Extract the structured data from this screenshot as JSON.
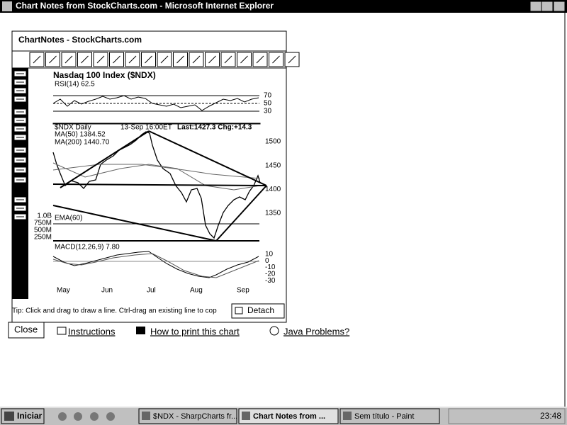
{
  "window": {
    "title": "Chart Notes from StockCharts.com - Microsoft Internet Explorer"
  },
  "applet": {
    "header": "ChartNotes - StockCharts.com",
    "tip": "Tip: Click and drag to draw a line. Ctrl-drag an existing line to cop",
    "detach": "Detach"
  },
  "chart": {
    "title": "Nasdaq 100 Index ($NDX)",
    "rsi_label": "RSI(14) 62.5",
    "rsi_ticks": [
      "70",
      "50",
      "30"
    ],
    "symbol": "$NDX Daily",
    "date": "13-Sep 16:00ET",
    "last": "Last:1427.3 Chg:+14.3",
    "ma50": "MA(50) 1384.52",
    "ma200": "MA(200) 1440.70",
    "price_ticks": [
      "1500",
      "1450",
      "1400",
      "1350"
    ],
    "volume_ticks": [
      "1.0B",
      "750M",
      "500M",
      "250M"
    ],
    "ema": "EMA(60)",
    "macd_label": "MACD(12,26,9) 7.80",
    "macd_ticks": [
      "10",
      "0",
      "-10",
      "-20",
      "-30"
    ],
    "months": [
      "May",
      "Jun",
      "Jul",
      "Aug",
      "Sep"
    ]
  },
  "links": {
    "close": "Close",
    "instructions": "Instructions",
    "print": "How to print this chart",
    "java": "Java Problems?"
  },
  "taskbar": {
    "start": "Iniciar",
    "tasks": [
      "$NDX - SharpCharts fr...",
      "Chart Notes from ...",
      "Sem título - Paint"
    ],
    "clock": "23:48"
  }
}
